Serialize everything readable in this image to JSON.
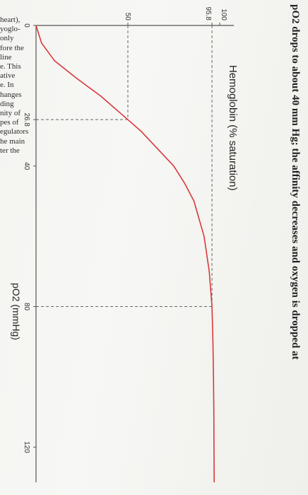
{
  "side_text": [
    "heart),",
    "yoglo-",
    "only",
    "fore the",
    "line",
    "e. This",
    "ative",
    "e. In",
    "hanges",
    "ding",
    "nity of",
    "pes of",
    "egulators",
    "he main",
    "ter the"
  ],
  "headline": "pO2 drops to about 40 mm Hg; the affinity decreases and oxygen is dropped at",
  "chart_data": {
    "type": "line",
    "ylabel": "Hemoglobin (% saturation)",
    "xlabel": "pO2 (mmHg)",
    "xlim": [
      0,
      130
    ],
    "ylim": [
      0,
      100
    ],
    "x_ticks": [
      {
        "value": 0,
        "label": "0"
      },
      {
        "value": 26.8,
        "label": "26.8"
      },
      {
        "value": 40,
        "label": "40"
      },
      {
        "value": 80,
        "label": "80"
      },
      {
        "value": 120,
        "label": "120"
      }
    ],
    "y_ticks": [
      {
        "value": 50,
        "label": "50"
      },
      {
        "value": 95.8,
        "label": "95.8"
      },
      {
        "value": 100,
        "label": "100"
      }
    ],
    "reference_points": [
      {
        "x": 26.8,
        "y": 50
      },
      {
        "x": 80,
        "y": 95.8
      }
    ],
    "series": [
      {
        "color": "#d9383a",
        "x": [
          0,
          5,
          10,
          15,
          20,
          26.8,
          30,
          35,
          40,
          45,
          50,
          60,
          70,
          80,
          90,
          100,
          110,
          120,
          130
        ],
        "y": [
          0,
          3,
          10,
          22,
          35,
          50,
          57,
          66,
          75,
          81,
          86,
          91.5,
          94.3,
          95.8,
          96.3,
          96.6,
          96.8,
          96.9,
          97
        ]
      }
    ]
  }
}
